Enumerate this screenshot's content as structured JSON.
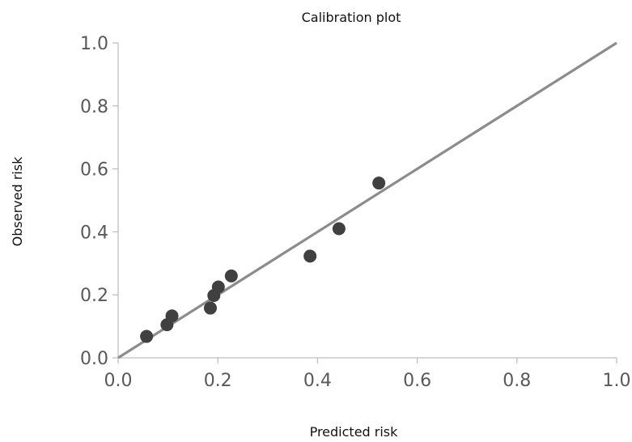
{
  "chart_data": {
    "type": "scatter",
    "title": "Calibration plot",
    "xlabel": "Predicted risk",
    "ylabel": "Observed  risk",
    "xlim": [
      0.0,
      1.0
    ],
    "ylim": [
      0.0,
      1.0
    ],
    "xticks": [
      "0.0",
      "0.2",
      "0.4",
      "0.6",
      "0.8",
      "1.0"
    ],
    "yticks": [
      "0.0",
      "0.2",
      "0.4",
      "0.6",
      "0.8",
      "1.0"
    ],
    "grid": false,
    "legend": "none",
    "points": {
      "x": [
        0.057,
        0.098,
        0.108,
        0.185,
        0.192,
        0.201,
        0.227,
        0.385,
        0.443,
        0.523
      ],
      "y": [
        0.068,
        0.105,
        0.133,
        0.158,
        0.198,
        0.225,
        0.26,
        0.323,
        0.41,
        0.555
      ]
    },
    "reference_line": {
      "x": [
        0.0,
        1.0
      ],
      "y": [
        0.0,
        1.0
      ]
    },
    "colors": {
      "points": "#404040",
      "line": "#8c8c8c",
      "axis": "#bfbfbf",
      "tick_text": "#595959",
      "label_text": "#111111"
    }
  }
}
